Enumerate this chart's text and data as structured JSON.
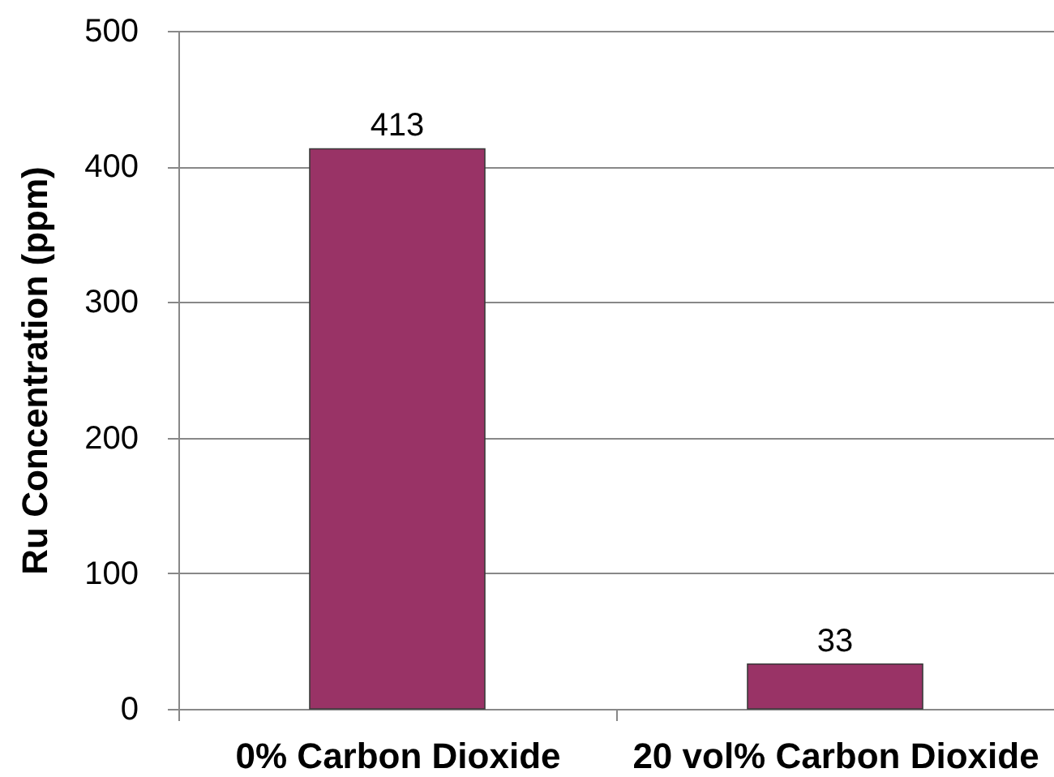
{
  "chart_data": {
    "type": "bar",
    "ylabel": "Ru Concentration (ppm)",
    "categories": [
      "0% Carbon Dioxide",
      "20 vol% Carbon Dioxide"
    ],
    "values": [
      413,
      33
    ],
    "color": "#993366",
    "ylim": [
      0,
      500
    ],
    "yticks": [
      0,
      100,
      200,
      300,
      400,
      500
    ],
    "grid": "y",
    "data_labels": true
  }
}
